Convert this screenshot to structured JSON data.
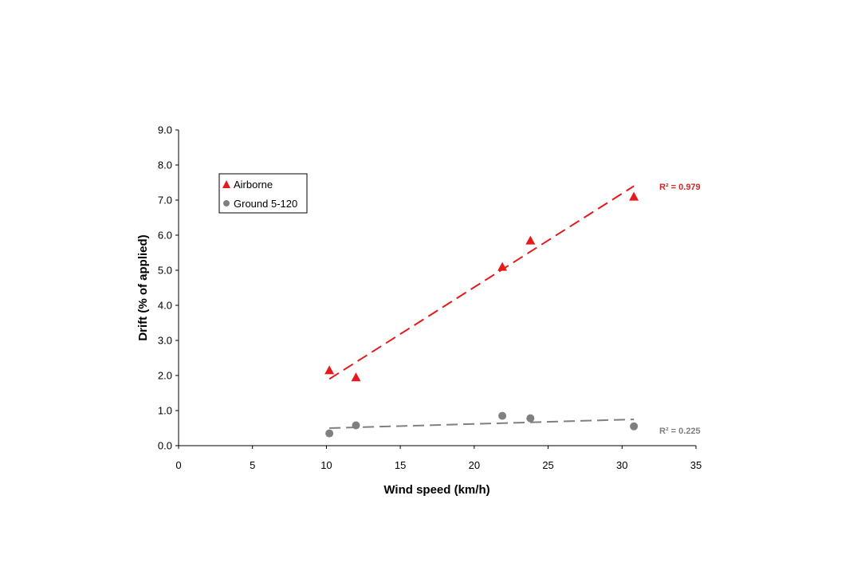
{
  "chart_data": {
    "type": "scatter",
    "title": "",
    "xlabel": "Wind speed (km/h)",
    "ylabel": "Drift (% of applied)",
    "xlim": [
      0,
      35
    ],
    "ylim": [
      0,
      9
    ],
    "xticks": [
      0,
      5,
      10,
      15,
      20,
      25,
      30,
      35
    ],
    "xtick_labels": [
      "0",
      "5",
      "10",
      "15",
      "20",
      "25",
      "30",
      "35"
    ],
    "yticks": [
      0,
      1,
      2,
      3,
      4,
      5,
      6,
      7,
      8,
      9
    ],
    "ytick_labels": [
      "0.0",
      "1.0",
      "2.0",
      "3.0",
      "4.0",
      "5.0",
      "6.0",
      "7.0",
      "8.0",
      "9.0"
    ],
    "grid": false,
    "legend_position": "top-left",
    "series": [
      {
        "name": "Airborne",
        "marker": "triangle",
        "color": "#e41a1c",
        "x": [
          10.2,
          12.0,
          21.9,
          23.8,
          30.8
        ],
        "y": [
          2.15,
          1.95,
          5.1,
          5.85,
          7.1
        ],
        "trendline": {
          "x": [
            10.2,
            30.8
          ],
          "y": [
            1.9,
            7.4
          ],
          "style": "dashed"
        },
        "r2_label": "R² = 0.979"
      },
      {
        "name": "Ground 5-120",
        "marker": "circle",
        "color": "#808080",
        "x": [
          10.2,
          12.0,
          21.9,
          23.8,
          30.8
        ],
        "y": [
          0.35,
          0.58,
          0.85,
          0.78,
          0.55
        ],
        "trendline": {
          "x": [
            10.2,
            30.8
          ],
          "y": [
            0.5,
            0.75
          ],
          "style": "dashed"
        },
        "r2_label": "R² = 0.225"
      }
    ]
  }
}
